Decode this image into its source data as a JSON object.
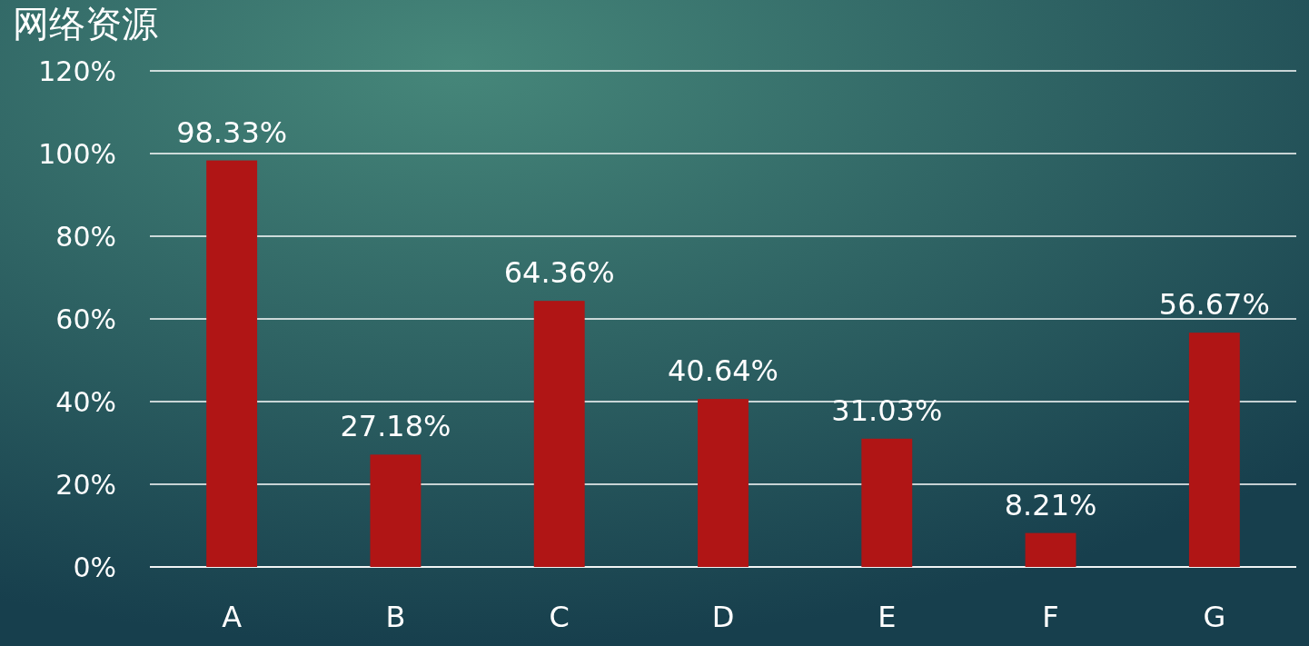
{
  "chart_data": {
    "type": "bar",
    "title": "网络资源",
    "categories": [
      "A",
      "B",
      "C",
      "D",
      "E",
      "F",
      "G"
    ],
    "values": [
      98.33,
      27.18,
      64.36,
      40.64,
      31.03,
      8.21,
      56.67
    ],
    "value_labels": [
      "98.33%",
      "27.18%",
      "64.36%",
      "40.64%",
      "31.03%",
      "8.21%",
      "56.67%"
    ],
    "color": "#b01515",
    "ylim": [
      0,
      120
    ],
    "yticks": [
      {
        "value": 0,
        "label": "0%"
      },
      {
        "value": 20,
        "label": "20%"
      },
      {
        "value": 40,
        "label": "40%"
      },
      {
        "value": 60,
        "label": "60%"
      },
      {
        "value": 80,
        "label": "80%"
      },
      {
        "value": 100,
        "label": "100%"
      },
      {
        "value": 120,
        "label": "120%"
      }
    ],
    "grid": "y"
  }
}
